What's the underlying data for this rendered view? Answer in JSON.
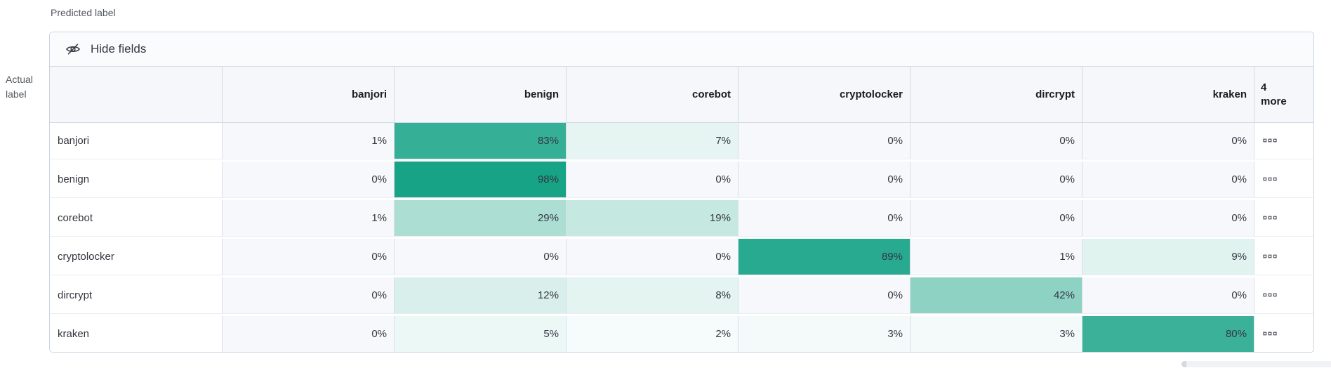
{
  "labels": {
    "predicted": "Predicted label",
    "actual": "Actual label"
  },
  "toolbar": {
    "hide_fields_label": "Hide fields",
    "hide_fields_icon": "eye-closed-icon"
  },
  "matrix": {
    "columns": [
      "banjori",
      "benign",
      "corebot",
      "cryptolocker",
      "dircrypt",
      "kraken"
    ],
    "more_column_label": "4\nmore",
    "more_cell_icon": "boxes-horizontal-icon",
    "value_suffix": "%",
    "rows": [
      {
        "label": "banjori",
        "values": [
          1,
          83,
          7,
          0,
          0,
          0
        ]
      },
      {
        "label": "benign",
        "values": [
          0,
          98,
          0,
          0,
          0,
          0
        ]
      },
      {
        "label": "corebot",
        "values": [
          1,
          29,
          19,
          0,
          0,
          0
        ]
      },
      {
        "label": "cryptolocker",
        "values": [
          0,
          0,
          0,
          89,
          1,
          9
        ]
      },
      {
        "label": "dircrypt",
        "values": [
          0,
          12,
          8,
          0,
          42,
          0
        ]
      },
      {
        "label": "kraken",
        "values": [
          0,
          5,
          2,
          3,
          3,
          80
        ]
      }
    ]
  },
  "colors": {
    "heat_base": "#12A184",
    "empty_cell": "#f6f8fb",
    "header_bg": "#f5f7fb",
    "border": "#d3dae6",
    "text": "#343741"
  },
  "chart_data": {
    "type": "heatmap",
    "title": "Confusion matrix",
    "xlabel": "Predicted label",
    "ylabel": "Actual label",
    "x_categories": [
      "banjori",
      "benign",
      "corebot",
      "cryptolocker",
      "dircrypt",
      "kraken"
    ],
    "y_categories": [
      "banjori",
      "benign",
      "corebot",
      "cryptolocker",
      "dircrypt",
      "kraken"
    ],
    "values_percent": [
      [
        1,
        83,
        7,
        0,
        0,
        0
      ],
      [
        0,
        98,
        0,
        0,
        0,
        0
      ],
      [
        1,
        29,
        19,
        0,
        0,
        0
      ],
      [
        0,
        0,
        0,
        89,
        1,
        9
      ],
      [
        0,
        12,
        8,
        0,
        42,
        0
      ],
      [
        0,
        5,
        2,
        3,
        3,
        80
      ]
    ],
    "hidden_columns_count": 4,
    "color_scale": [
      "#ffffff",
      "#12A184"
    ]
  }
}
